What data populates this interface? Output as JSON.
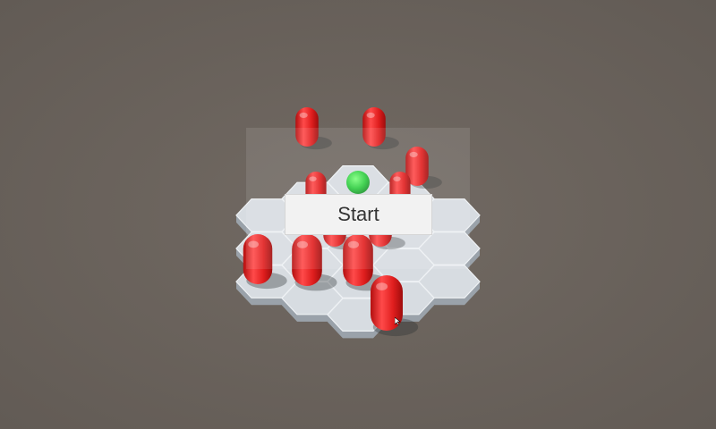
{
  "menu": {
    "start_label": "Start"
  },
  "colors": {
    "background": "#6b635d",
    "tile_top": "#d7dce1",
    "tile_side": "#9aa2aa",
    "enemy": "#e01e1e",
    "player": "#2ecc40"
  },
  "board": {
    "shape": "hexagon",
    "tile_shape": "hexagon",
    "tile_count": 19
  },
  "units": {
    "enemy_count": 12,
    "player_count": 1
  }
}
